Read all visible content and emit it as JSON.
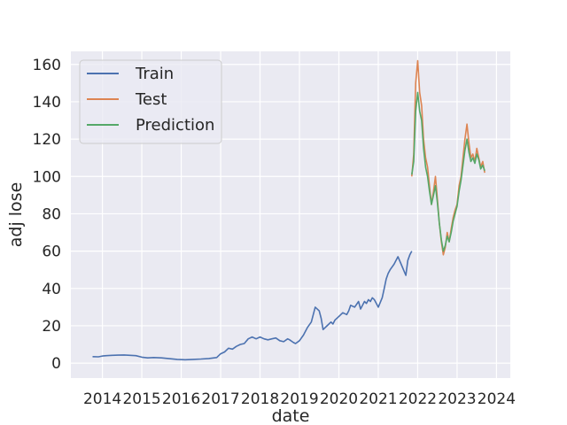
{
  "chart_data": {
    "type": "line",
    "title": "",
    "xlabel": "date",
    "ylabel": "adj lose",
    "xlim": [
      2013.2,
      2024.35
    ],
    "ylim": [
      -8,
      167
    ],
    "x_ticks": [
      2014,
      2015,
      2016,
      2017,
      2018,
      2019,
      2020,
      2021,
      2022,
      2023,
      2024
    ],
    "x_tick_labels": [
      "2014",
      "2015",
      "2016",
      "2017",
      "2018",
      "2019",
      "2020",
      "2021",
      "2022",
      "2023",
      "2024"
    ],
    "y_ticks": [
      0,
      20,
      40,
      60,
      80,
      100,
      120,
      140,
      160
    ],
    "y_tick_labels": [
      "0",
      "20",
      "40",
      "60",
      "80",
      "100",
      "120",
      "140",
      "160"
    ],
    "grid": true,
    "legend_position": "top-left",
    "colors": {
      "background": "#eaeaf2",
      "grid": "#ffffff",
      "train": "#4c72b0",
      "test": "#dd8452",
      "prediction": "#55a868"
    },
    "series": [
      {
        "name": "Train",
        "x": [
          2013.75,
          2013.9,
          2014.0,
          2014.1,
          2014.25,
          2014.4,
          2014.55,
          2014.7,
          2014.85,
          2015.0,
          2015.15,
          2015.3,
          2015.5,
          2015.7,
          2015.9,
          2016.1,
          2016.3,
          2016.5,
          2016.7,
          2016.9,
          2017.0,
          2017.1,
          2017.2,
          2017.3,
          2017.4,
          2017.5,
          2017.6,
          2017.7,
          2017.8,
          2017.9,
          2018.0,
          2018.1,
          2018.2,
          2018.3,
          2018.4,
          2018.5,
          2018.6,
          2018.7,
          2018.75,
          2018.85,
          2018.9,
          2019.0,
          2019.1,
          2019.2,
          2019.3,
          2019.4,
          2019.5,
          2019.55,
          2019.6,
          2019.7,
          2019.8,
          2019.85,
          2019.9,
          2020.0,
          2020.1,
          2020.2,
          2020.25,
          2020.3,
          2020.4,
          2020.5,
          2020.55,
          2020.6,
          2020.65,
          2020.7,
          2020.75,
          2020.8,
          2020.85,
          2020.9,
          2021.0,
          2021.1,
          2021.15,
          2021.2,
          2021.25,
          2021.3,
          2021.4,
          2021.5,
          2021.6,
          2021.7,
          2021.75,
          2021.8,
          2021.85
        ],
        "y": [
          3.5,
          3.4,
          3.8,
          4.0,
          4.2,
          4.3,
          4.4,
          4.2,
          4.0,
          3.2,
          2.8,
          3.0,
          2.8,
          2.4,
          2.0,
          1.8,
          2.0,
          2.2,
          2.5,
          3.0,
          5.0,
          6.0,
          8.0,
          7.5,
          9.0,
          10.0,
          10.5,
          13.0,
          14.0,
          13.0,
          14.0,
          13.0,
          12.5,
          13.0,
          13.5,
          12.0,
          11.5,
          13.0,
          12.5,
          11.0,
          10.5,
          12.0,
          15.0,
          19.0,
          22.0,
          30.0,
          28.0,
          24.0,
          18.0,
          20.0,
          22.0,
          21.0,
          23.0,
          25.0,
          27.0,
          26.0,
          28.0,
          31.0,
          30.0,
          33.0,
          29.0,
          31.0,
          33.0,
          32.0,
          34.0,
          33.0,
          35.0,
          34.0,
          30.0,
          35.0,
          40.0,
          45.0,
          48.0,
          50.0,
          53.0,
          57.0,
          52.0,
          47.0,
          55.0,
          58.0,
          60.0
        ]
      },
      {
        "name": "Test",
        "x": [
          2021.85,
          2021.9,
          2021.95,
          2022.0,
          2022.05,
          2022.1,
          2022.15,
          2022.2,
          2022.25,
          2022.3,
          2022.35,
          2022.4,
          2022.45,
          2022.5,
          2022.55,
          2022.6,
          2022.65,
          2022.7,
          2022.75,
          2022.8,
          2022.85,
          2022.9,
          2022.95,
          2023.0,
          2023.05,
          2023.1,
          2023.15,
          2023.2,
          2023.25,
          2023.3,
          2023.35,
          2023.4,
          2023.45,
          2023.5,
          2023.55,
          2023.6,
          2023.65,
          2023.7
        ],
        "y": [
          100,
          112,
          150,
          162,
          145,
          138,
          120,
          110,
          105,
          95,
          85,
          92,
          100,
          88,
          75,
          65,
          58,
          62,
          70,
          65,
          72,
          78,
          82,
          85,
          95,
          100,
          110,
          120,
          128,
          118,
          110,
          112,
          108,
          115,
          110,
          105,
          108,
          102
        ]
      },
      {
        "name": "Prediction",
        "x": [
          2021.85,
          2021.9,
          2021.95,
          2022.0,
          2022.05,
          2022.1,
          2022.15,
          2022.2,
          2022.25,
          2022.3,
          2022.35,
          2022.4,
          2022.45,
          2022.5,
          2022.55,
          2022.6,
          2022.65,
          2022.7,
          2022.75,
          2022.8,
          2022.85,
          2022.9,
          2022.95,
          2023.0,
          2023.05,
          2023.1,
          2023.15,
          2023.2,
          2023.25,
          2023.3,
          2023.35,
          2023.4,
          2023.45,
          2023.5,
          2023.55,
          2023.6,
          2023.65,
          2023.7
        ],
        "y": [
          101,
          108,
          135,
          145,
          135,
          130,
          115,
          105,
          100,
          92,
          85,
          90,
          95,
          86,
          75,
          66,
          60,
          63,
          68,
          65,
          70,
          76,
          80,
          84,
          92,
          98,
          106,
          114,
          120,
          113,
          108,
          110,
          107,
          112,
          109,
          104,
          106,
          103
        ]
      }
    ]
  }
}
